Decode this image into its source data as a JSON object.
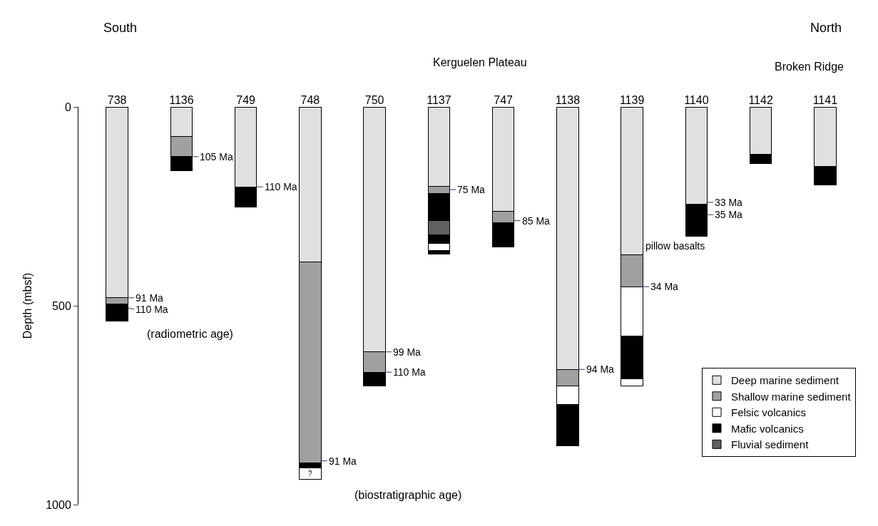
{
  "chart_data": {
    "type": "bar",
    "stacked": true,
    "ylabel": "Depth (mbsf)",
    "categories": [
      "738",
      "1136",
      "749",
      "748",
      "750",
      "1137",
      "747",
      "1138",
      "1139",
      "1140",
      "1142",
      "1141"
    ],
    "series": [
      {
        "name": "Deep marine sediment",
        "color": "#e0e0e0",
        "values": [
          480,
          75,
          201,
          390,
          616,
          199,
          262,
          660,
          371,
          245,
          119,
          150
        ]
      },
      {
        "name": "Shallow marine sediment",
        "color": "#a0a0a0",
        "values": [
          15,
          50,
          null,
          506,
          51,
          19,
          30,
          42,
          81,
          null,
          null,
          null
        ]
      },
      {
        "name": "Felsic volcanics",
        "color": "#ffffff",
        "values": [
          null,
          null,
          null,
          null,
          null,
          null,
          null,
          46,
          124,
          null,
          null,
          null
        ]
      },
      {
        "name": "Mafic volcanics",
        "color": "#000000",
        "values": [
          43,
          36,
          51,
          12,
          35,
          67,
          61,
          104,
          108,
          26,
          23,
          46
        ]
      },
      {
        "name": "Fluvial sediment",
        "color": "#606060",
        "values": [
          null,
          null,
          null,
          null,
          null,
          36,
          null,
          null,
          null,
          null,
          null,
          null
        ]
      },
      {
        "color": "#000000",
        "values": [
          null,
          null,
          null,
          null,
          null,
          23,
          null,
          null,
          null,
          55,
          null,
          null
        ]
      },
      {
        "color": "#ffffff",
        "values": [
          null,
          null,
          null,
          29,
          null,
          17,
          null,
          null,
          18,
          null,
          null,
          null
        ]
      },
      {
        "color": "#000000",
        "values": [
          null,
          null,
          null,
          null,
          null,
          9,
          null,
          null,
          null,
          null,
          null,
          null
        ]
      }
    ],
    "ylim": [
      1000,
      0
    ],
    "yticks": [
      0,
      500,
      1000
    ],
    "legend": "bottom right",
    "annotations": [
      "South",
      "North",
      "Kerguelen Plateau",
      "Broken Ridge",
      "(radiometric age)",
      "(biostratigraphic age)",
      "?",
      "pillow basalts",
      {
        "text": "91 Ma",
        "x": "738",
        "y": 480
      },
      {
        "text": "110 Ma",
        "x": "738",
        "y": 500
      },
      {
        "text": "105 Ma",
        "x": "1136",
        "y": 125
      },
      {
        "text": "110 Ma",
        "x": "749",
        "y": 201
      },
      {
        "text": "91 Ma",
        "x": "748",
        "y": 890
      },
      {
        "text": "99 Ma",
        "x": "750",
        "y": 616
      },
      {
        "text": "110 Ma",
        "x": "750",
        "y": 667
      },
      {
        "text": "75 Ma",
        "x": "1137",
        "y": 208
      },
      {
        "text": "85 Ma",
        "x": "747",
        "y": 286
      },
      {
        "text": "94 Ma",
        "x": "1138",
        "y": 660
      },
      {
        "text": "34 Ma",
        "x": "1139",
        "y": 452
      },
      {
        "text": "33 Ma",
        "x": "1140",
        "y": 240
      },
      {
        "text": "35 Ma",
        "x": "1140",
        "y": 271
      }
    ]
  }
}
